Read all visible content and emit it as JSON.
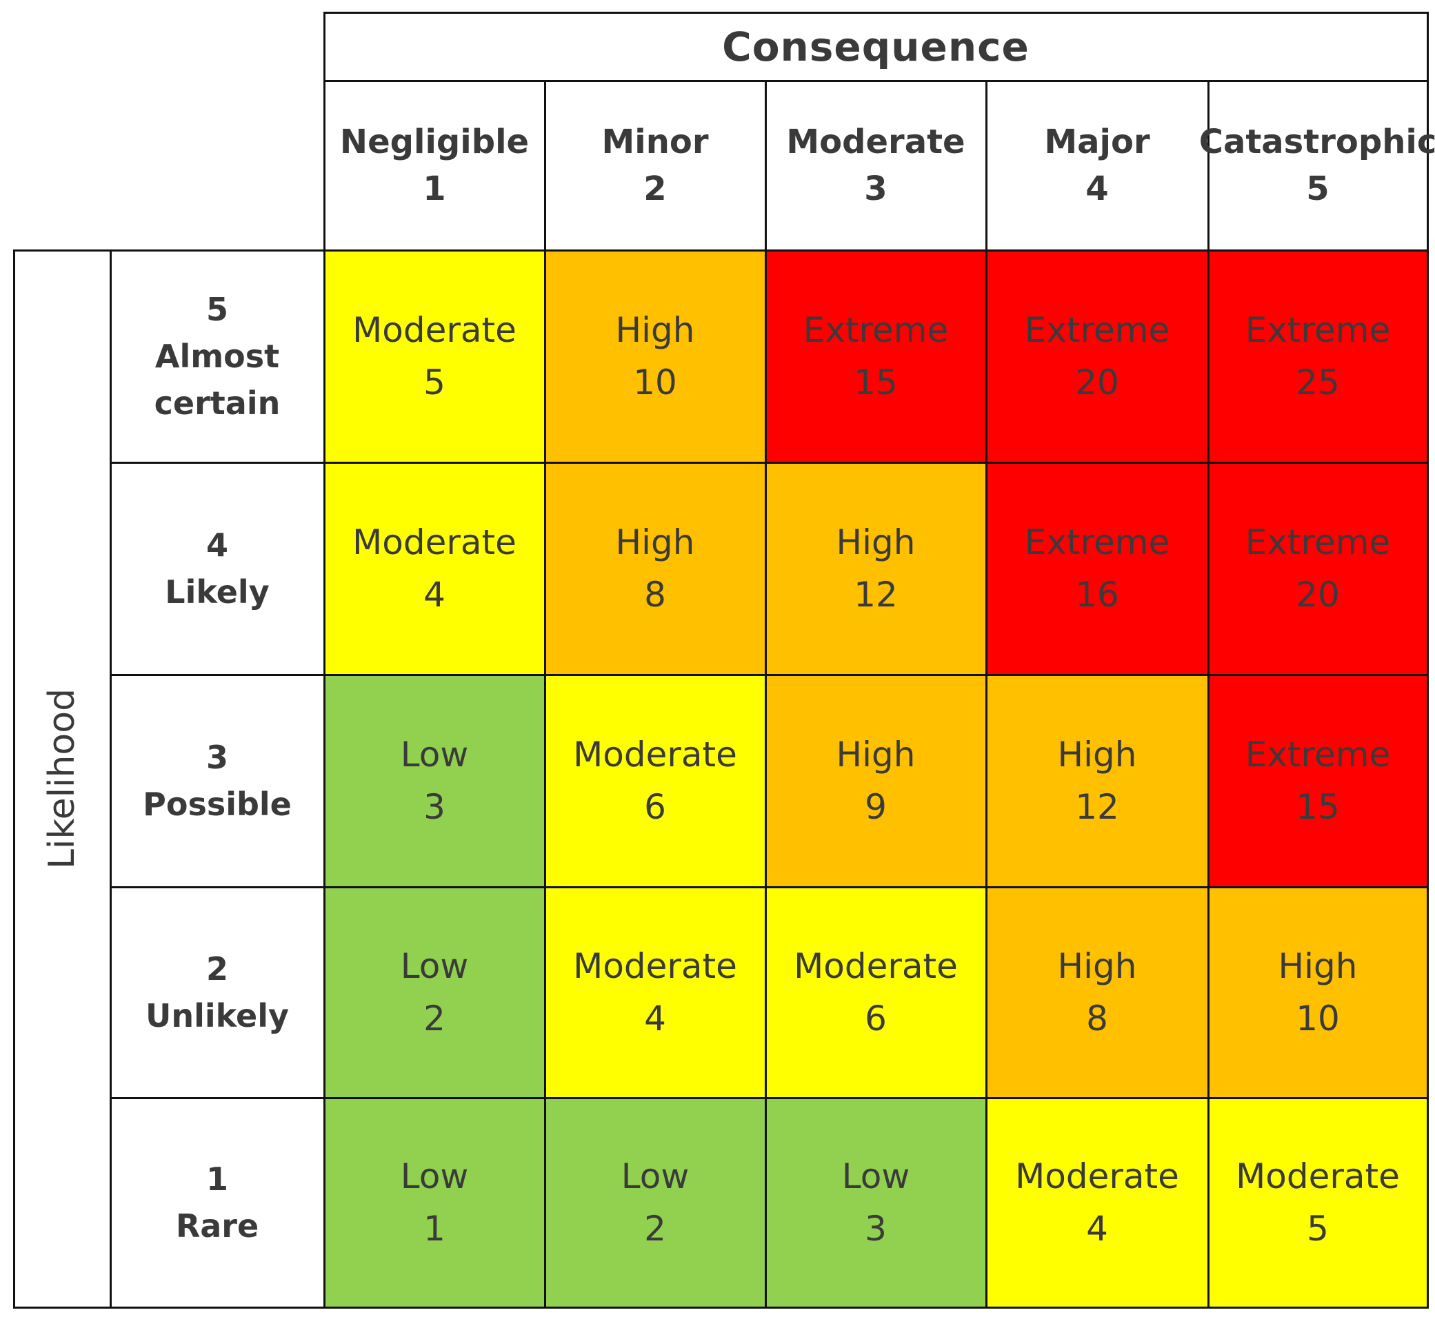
{
  "chart_data": {
    "type": "table",
    "title": "",
    "column_axis_label": "Consequence",
    "row_axis_label": "Likelihood",
    "columns": [
      {
        "name": "Negligible",
        "score": "1"
      },
      {
        "name": "Minor",
        "score": "2"
      },
      {
        "name": "Moderate",
        "score": "3"
      },
      {
        "name": "Major",
        "score": "4"
      },
      {
        "name": "Catastrophic",
        "score": "5"
      }
    ],
    "rows": [
      {
        "score": "5",
        "name": "Almost certain",
        "name_lines": [
          "Almost",
          "certain"
        ]
      },
      {
        "score": "4",
        "name": "Likely",
        "name_lines": [
          "Likely"
        ]
      },
      {
        "score": "3",
        "name": "Possible",
        "name_lines": [
          "Possible"
        ]
      },
      {
        "score": "2",
        "name": "Unlikely",
        "name_lines": [
          "Unlikely"
        ]
      },
      {
        "score": "1",
        "name": "Rare",
        "name_lines": [
          "Rare"
        ]
      }
    ],
    "cells": [
      [
        {
          "level": "Moderate",
          "value": 5
        },
        {
          "level": "High",
          "value": 10
        },
        {
          "level": "Extreme",
          "value": 15
        },
        {
          "level": "Extreme",
          "value": 20
        },
        {
          "level": "Extreme",
          "value": 25
        }
      ],
      [
        {
          "level": "Moderate",
          "value": 4
        },
        {
          "level": "High",
          "value": 8
        },
        {
          "level": "High",
          "value": 12
        },
        {
          "level": "Extreme",
          "value": 16
        },
        {
          "level": "Extreme",
          "value": 20
        }
      ],
      [
        {
          "level": "Low",
          "value": 3
        },
        {
          "level": "Moderate",
          "value": 6
        },
        {
          "level": "High",
          "value": 9
        },
        {
          "level": "High",
          "value": 12
        },
        {
          "level": "Extreme",
          "value": 15
        }
      ],
      [
        {
          "level": "Low",
          "value": 2
        },
        {
          "level": "Moderate",
          "value": 4
        },
        {
          "level": "Moderate",
          "value": 6
        },
        {
          "level": "High",
          "value": 8
        },
        {
          "level": "High",
          "value": 10
        }
      ],
      [
        {
          "level": "Low",
          "value": 1
        },
        {
          "level": "Low",
          "value": 2
        },
        {
          "level": "Low",
          "value": 3
        },
        {
          "level": "Moderate",
          "value": 4
        },
        {
          "level": "Moderate",
          "value": 5
        }
      ]
    ],
    "level_colors": {
      "Low": "#92d050",
      "Moderate": "#ffff00",
      "High": "#ffc000",
      "Extreme": "#ff0000"
    }
  }
}
